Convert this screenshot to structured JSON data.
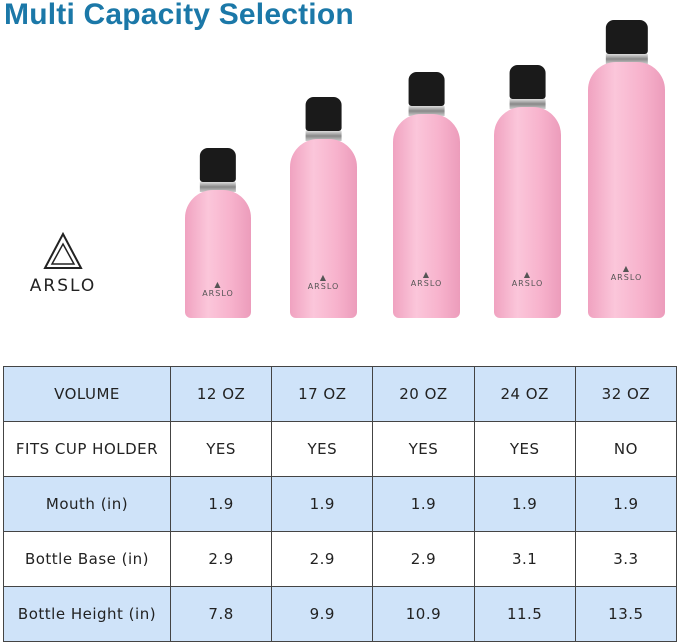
{
  "title": "Multi Capacity Selection",
  "brand": {
    "name": "ARSLO"
  },
  "bottle_color": "#f5aac8",
  "title_color": "#1b78a8",
  "table": {
    "rows": [
      {
        "label": "VOLUME",
        "values": [
          "12 OZ",
          "17 OZ",
          "20 OZ",
          "24 OZ",
          "32 OZ"
        ]
      },
      {
        "label": "FITS CUP HOLDER",
        "values": [
          "YES",
          "YES",
          "YES",
          "YES",
          "NO"
        ]
      },
      {
        "label": "Mouth (in)",
        "values": [
          "1.9",
          "1.9",
          "1.9",
          "1.9",
          "1.9"
        ]
      },
      {
        "label": "Bottle Base (in)",
        "values": [
          "2.9",
          "2.9",
          "2.9",
          "3.1",
          "3.3"
        ]
      },
      {
        "label": "Bottle Height (in)",
        "values": [
          "7.8",
          "9.9",
          "10.9",
          "11.5",
          "13.5"
        ]
      }
    ]
  }
}
